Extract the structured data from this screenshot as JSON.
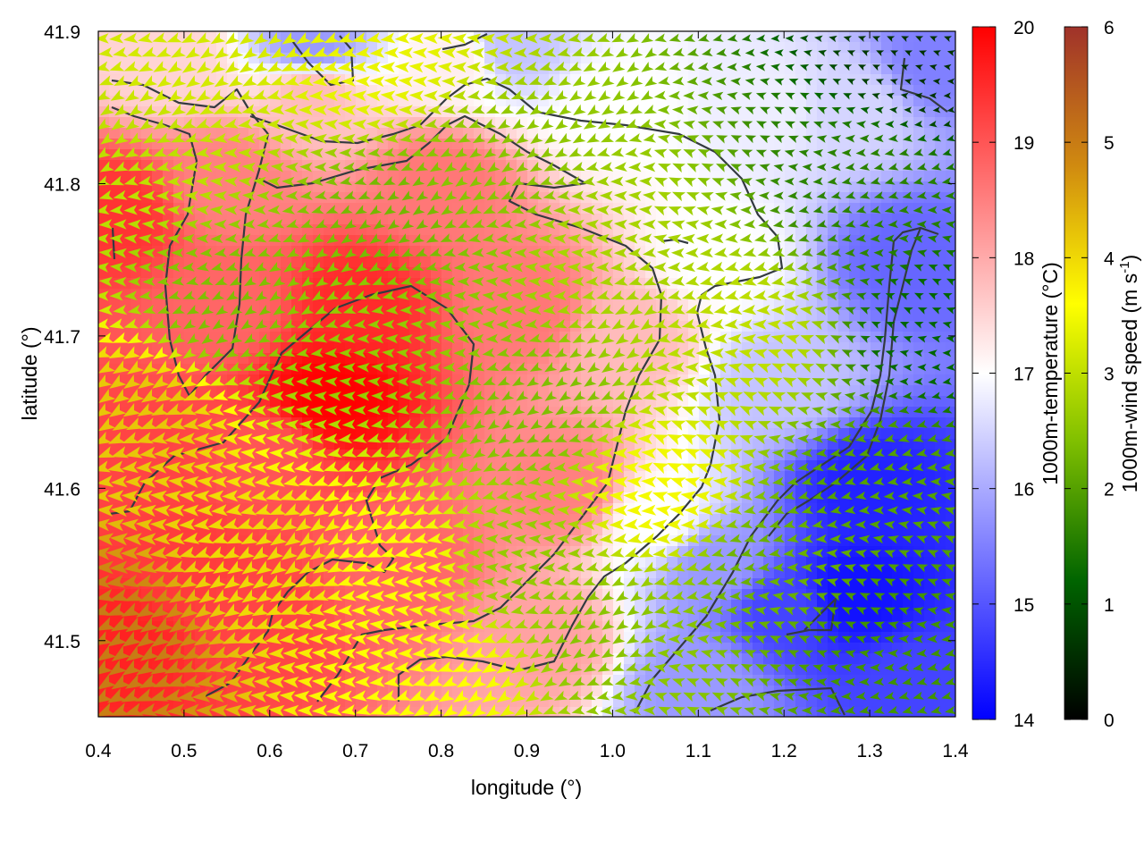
{
  "chart_data": {
    "type": "heatmap",
    "title": "",
    "xlabel": "longitude (°)",
    "ylabel": "latitude (°)",
    "xlim": [
      0.4,
      1.4
    ],
    "ylim": [
      41.45,
      41.9
    ],
    "xticks": [
      "0.4",
      "0.5",
      "0.6",
      "0.7",
      "0.8",
      "0.9",
      "1.0",
      "1.1",
      "1.2",
      "1.3",
      "1.4"
    ],
    "yticks": [
      "41.5",
      "41.6",
      "41.7",
      "41.8",
      "41.9"
    ],
    "temperature_colorbar": {
      "label": "1000m-temperature (°C)",
      "range": [
        14,
        20
      ],
      "ticks": [
        "14",
        "15",
        "16",
        "17",
        "18",
        "19",
        "20"
      ],
      "colors": [
        "#0000ff",
        "#ffffff",
        "#ff0000"
      ]
    },
    "windspeed_colorbar": {
      "label": "1000m-wind speed (m s",
      "label_superscript": "-1",
      "label_close": ")",
      "range": [
        0,
        6
      ],
      "ticks": [
        "0",
        "1",
        "2",
        "3",
        "4",
        "5",
        "6"
      ],
      "colors": [
        "#000000",
        "#006400",
        "#7fbf00",
        "#ffff00",
        "#d08a10",
        "#a0322a"
      ]
    },
    "temperature_field": [
      {
        "x": 0.42,
        "y": 41.5,
        "t": 19.6
      },
      {
        "x": 0.45,
        "y": 41.62,
        "t": 19.2
      },
      {
        "x": 0.42,
        "y": 41.78,
        "t": 19.4
      },
      {
        "x": 0.5,
        "y": 41.55,
        "t": 19.3
      },
      {
        "x": 0.58,
        "y": 41.52,
        "t": 19.2
      },
      {
        "x": 0.6,
        "y": 41.62,
        "t": 19.0
      },
      {
        "x": 0.67,
        "y": 41.66,
        "t": 20.0
      },
      {
        "x": 0.7,
        "y": 41.72,
        "t": 19.5
      },
      {
        "x": 0.75,
        "y": 41.55,
        "t": 18.8
      },
      {
        "x": 0.55,
        "y": 41.72,
        "t": 18.8
      },
      {
        "x": 0.55,
        "y": 41.8,
        "t": 18.5
      },
      {
        "x": 0.8,
        "y": 41.8,
        "t": 18.6
      },
      {
        "x": 0.9,
        "y": 41.72,
        "t": 18.6
      },
      {
        "x": 0.95,
        "y": 41.6,
        "t": 18.5
      },
      {
        "x": 0.92,
        "y": 41.5,
        "t": 18.1
      },
      {
        "x": 0.65,
        "y": 41.86,
        "t": 17.8
      },
      {
        "x": 0.48,
        "y": 41.88,
        "t": 17.5
      },
      {
        "x": 0.82,
        "y": 41.88,
        "t": 17.2
      },
      {
        "x": 1.0,
        "y": 41.85,
        "t": 17.0
      },
      {
        "x": 1.02,
        "y": 41.7,
        "t": 17.8
      },
      {
        "x": 1.05,
        "y": 41.58,
        "t": 17.0
      },
      {
        "x": 1.12,
        "y": 41.75,
        "t": 17.0
      },
      {
        "x": 1.18,
        "y": 41.85,
        "t": 16.8
      },
      {
        "x": 1.28,
        "y": 41.85,
        "t": 16.5
      },
      {
        "x": 1.38,
        "y": 41.88,
        "t": 15.5
      },
      {
        "x": 1.35,
        "y": 41.75,
        "t": 15.2
      },
      {
        "x": 1.2,
        "y": 41.67,
        "t": 16.3
      },
      {
        "x": 1.3,
        "y": 41.6,
        "t": 14.4
      },
      {
        "x": 1.28,
        "y": 41.53,
        "t": 14.2
      },
      {
        "x": 1.2,
        "y": 41.52,
        "t": 14.8
      },
      {
        "x": 1.12,
        "y": 41.55,
        "t": 15.8
      },
      {
        "x": 1.1,
        "y": 41.47,
        "t": 15.8
      },
      {
        "x": 1.35,
        "y": 41.47,
        "t": 14.8
      },
      {
        "x": 0.65,
        "y": 41.89,
        "t": 15.8
      },
      {
        "x": 0.88,
        "y": 41.89,
        "t": 16.3
      }
    ],
    "wind_field": [
      {
        "x": 0.42,
        "y": 41.5,
        "s": 5.0
      },
      {
        "x": 0.45,
        "y": 41.65,
        "s": 4.2
      },
      {
        "x": 0.6,
        "y": 41.55,
        "s": 4.0
      },
      {
        "x": 0.75,
        "y": 41.55,
        "s": 3.6
      },
      {
        "x": 0.8,
        "y": 41.48,
        "s": 3.6
      },
      {
        "x": 0.45,
        "y": 41.82,
        "s": 3.0
      },
      {
        "x": 0.55,
        "y": 41.72,
        "s": 2.4
      },
      {
        "x": 0.7,
        "y": 41.7,
        "s": 2.6
      },
      {
        "x": 0.75,
        "y": 41.78,
        "s": 2.3
      },
      {
        "x": 0.85,
        "y": 41.8,
        "s": 2.5
      },
      {
        "x": 0.92,
        "y": 41.65,
        "s": 2.4
      },
      {
        "x": 0.9,
        "y": 41.55,
        "s": 2.6
      },
      {
        "x": 0.5,
        "y": 41.88,
        "s": 3.2
      },
      {
        "x": 0.72,
        "y": 41.88,
        "s": 3.4
      },
      {
        "x": 1.0,
        "y": 41.75,
        "s": 2.8
      },
      {
        "x": 1.05,
        "y": 41.6,
        "s": 3.5
      },
      {
        "x": 1.0,
        "y": 41.5,
        "s": 2.5
      },
      {
        "x": 1.15,
        "y": 41.7,
        "s": 3.0
      },
      {
        "x": 1.2,
        "y": 41.55,
        "s": 2.2
      },
      {
        "x": 1.3,
        "y": 41.6,
        "s": 2.0
      },
      {
        "x": 1.3,
        "y": 41.8,
        "s": 1.6
      },
      {
        "x": 1.38,
        "y": 41.88,
        "s": 0.6
      },
      {
        "x": 1.38,
        "y": 41.7,
        "s": 1.2
      },
      {
        "x": 1.32,
        "y": 41.5,
        "s": 1.8
      }
    ],
    "grid": false,
    "legend": "none"
  }
}
